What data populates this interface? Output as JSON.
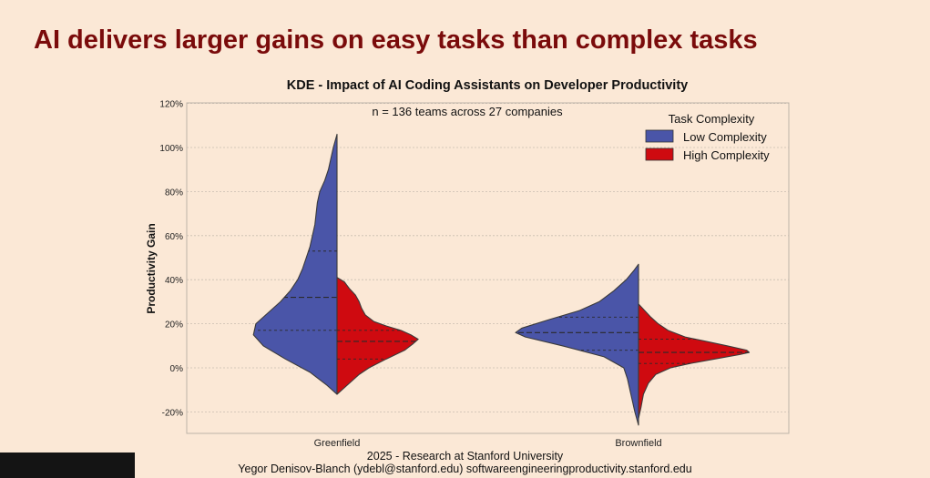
{
  "slide": {
    "title": "AI delivers larger gains on easy tasks than complex tasks"
  },
  "footer": {
    "line1": "2025 - Research at Stanford University",
    "line2": "Yegor Denisov-Blanch (ydebl@stanford.edu) softwareengineeringproductivity.stanford.edu"
  },
  "chart_data": {
    "type": "split-violin (KDE)",
    "title": "KDE - Impact of AI Coding Assistants on Developer Productivity",
    "annotation": "n = 136 teams across 27 companies",
    "xlabel": "",
    "ylabel": "Productivity Gain",
    "ylim": [
      -30,
      120
    ],
    "yticks": [
      -20,
      0,
      20,
      40,
      60,
      80,
      100,
      120
    ],
    "ytick_labels": [
      "-20%",
      "0%",
      "20%",
      "40%",
      "60%",
      "80%",
      "100%",
      "120%"
    ],
    "categories": [
      "Greenfield",
      "Brownfield"
    ],
    "grid": true,
    "legend": {
      "title": "Task Complexity",
      "position": "top-right",
      "entries": [
        "Low Complexity",
        "High Complexity"
      ]
    },
    "series": [
      {
        "name": "Low Complexity",
        "side": "left",
        "color": "#4a55a8",
        "violins": [
          {
            "category": "Greenfield",
            "range": [
              -12,
              106
            ],
            "quartiles": [
              17,
              32,
              53
            ],
            "density": [
              [
                -12,
                0
              ],
              [
                -8,
                0.08
              ],
              [
                -2,
                0.22
              ],
              [
                4,
                0.42
              ],
              [
                10,
                0.6
              ],
              [
                15,
                0.68
              ],
              [
                20,
                0.66
              ],
              [
                25,
                0.56
              ],
              [
                30,
                0.46
              ],
              [
                35,
                0.38
              ],
              [
                40,
                0.32
              ],
              [
                45,
                0.28
              ],
              [
                50,
                0.25
              ],
              [
                55,
                0.22
              ],
              [
                60,
                0.2
              ],
              [
                65,
                0.18
              ],
              [
                70,
                0.17
              ],
              [
                75,
                0.16
              ],
              [
                80,
                0.14
              ],
              [
                85,
                0.1
              ],
              [
                90,
                0.07
              ],
              [
                95,
                0.05
              ],
              [
                100,
                0.03
              ],
              [
                106,
                0
              ]
            ]
          },
          {
            "category": "Brownfield",
            "range": [
              -26,
              47
            ],
            "quartiles": [
              8,
              16,
              23
            ],
            "density": [
              [
                -26,
                0
              ],
              [
                -20,
                0.03
              ],
              [
                -15,
                0.05
              ],
              [
                -10,
                0.07
              ],
              [
                -5,
                0.09
              ],
              [
                0,
                0.12
              ],
              [
                5,
                0.28
              ],
              [
                10,
                0.62
              ],
              [
                14,
                0.92
              ],
              [
                16,
                1.0
              ],
              [
                18,
                0.95
              ],
              [
                22,
                0.72
              ],
              [
                26,
                0.48
              ],
              [
                30,
                0.32
              ],
              [
                35,
                0.2
              ],
              [
                40,
                0.1
              ],
              [
                44,
                0.04
              ],
              [
                47,
                0
              ]
            ]
          }
        ]
      },
      {
        "name": "High Complexity",
        "side": "right",
        "color": "#cf0a10",
        "violins": [
          {
            "category": "Greenfield",
            "range": [
              -12,
              41
            ],
            "quartiles": [
              4,
              12,
              17
            ],
            "density": [
              [
                -12,
                0
              ],
              [
                -8,
                0.08
              ],
              [
                -3,
                0.18
              ],
              [
                0,
                0.26
              ],
              [
                4,
                0.4
              ],
              [
                8,
                0.55
              ],
              [
                11,
                0.62
              ],
              [
                13,
                0.66
              ],
              [
                15,
                0.6
              ],
              [
                17,
                0.52
              ],
              [
                19,
                0.4
              ],
              [
                21,
                0.3
              ],
              [
                24,
                0.23
              ],
              [
                27,
                0.2
              ],
              [
                30,
                0.18
              ],
              [
                33,
                0.15
              ],
              [
                36,
                0.1
              ],
              [
                39,
                0.06
              ],
              [
                41,
                0
              ]
            ]
          },
          {
            "category": "Brownfield",
            "range": [
              -23,
              29
            ],
            "quartiles": [
              2,
              7,
              13
            ],
            "density": [
              [
                -23,
                0
              ],
              [
                -18,
                0.02
              ],
              [
                -12,
                0.04
              ],
              [
                -7,
                0.08
              ],
              [
                -3,
                0.14
              ],
              [
                0,
                0.26
              ],
              [
                2,
                0.42
              ],
              [
                4,
                0.62
              ],
              [
                6,
                0.82
              ],
              [
                7,
                0.9
              ],
              [
                8,
                0.88
              ],
              [
                10,
                0.72
              ],
              [
                12,
                0.55
              ],
              [
                14,
                0.38
              ],
              [
                17,
                0.24
              ],
              [
                20,
                0.16
              ],
              [
                23,
                0.1
              ],
              [
                26,
                0.05
              ],
              [
                29,
                0
              ]
            ]
          }
        ]
      }
    ]
  }
}
